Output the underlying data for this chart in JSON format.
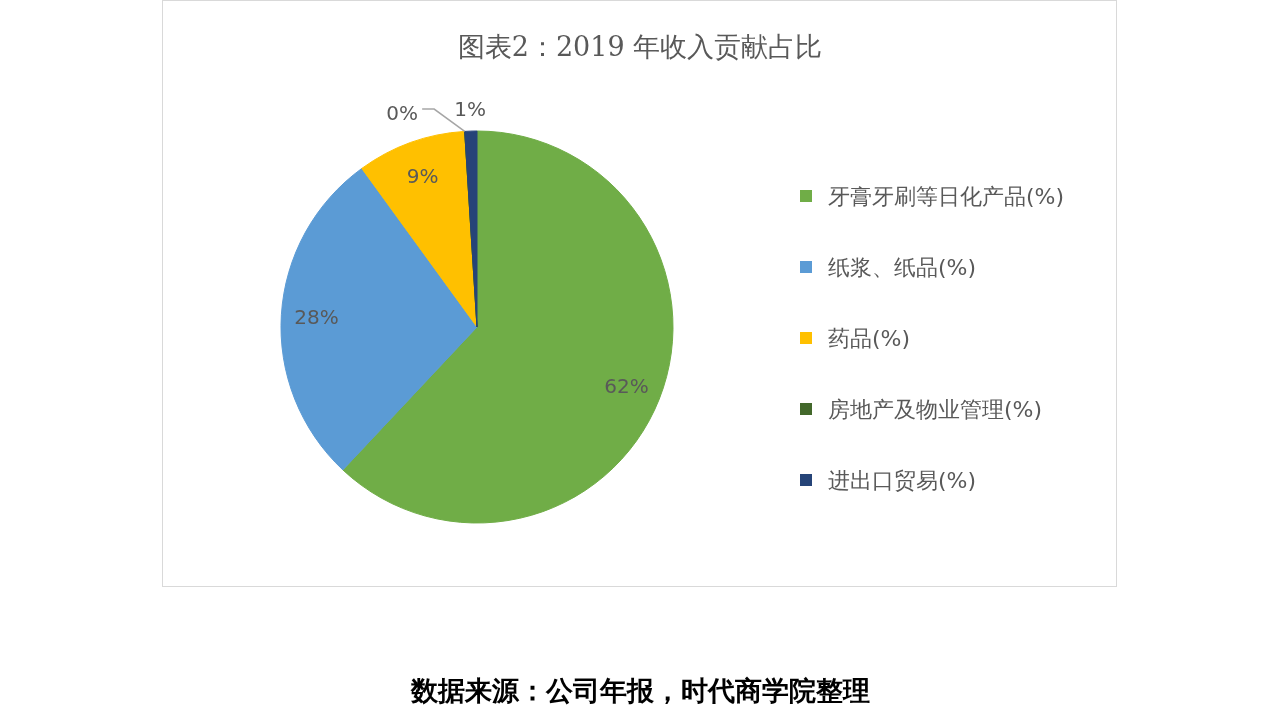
{
  "chart_data": {
    "type": "pie",
    "title": "图表2：2019 年收入贡献占比",
    "categories": [
      "牙膏牙刷等日化产品(%)",
      "纸浆、纸品(%)",
      "药品(%)",
      "房地产及物业管理(%)",
      "进出口贸易(%)"
    ],
    "values": [
      62,
      28,
      9,
      0,
      1
    ],
    "colors": [
      "#70ad47",
      "#5b9bd5",
      "#ffc000",
      "#43682b",
      "#264478"
    ],
    "value_labels": [
      "62%",
      "28%",
      "9%",
      "0%",
      "1%"
    ],
    "legend": "right",
    "annotations": [
      "数据来源：公司年报，时代商学院整理"
    ]
  }
}
